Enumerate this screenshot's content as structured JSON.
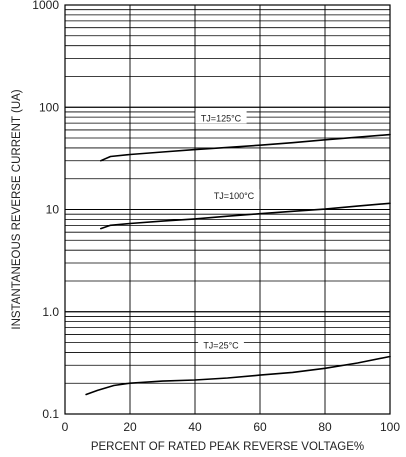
{
  "chart_data": {
    "type": "line",
    "title": "",
    "xlabel": "PERCENT OF RATED PEAK REVERSE VOLTAGE%",
    "ylabel": "INSTANTANEOUS REVERSE CURRENT (UA)",
    "xlim": [
      0,
      100
    ],
    "ylim": [
      0.1,
      1000
    ],
    "yscale": "log",
    "grid": true,
    "x_ticks": [
      0,
      20,
      40,
      60,
      80,
      100
    ],
    "x_tick_labels": [
      "0",
      "20",
      "40",
      "60",
      "80",
      "100"
    ],
    "y_ticks": [
      0.1,
      1,
      10,
      100,
      1000
    ],
    "y_tick_labels": [
      "0.1",
      "1.0",
      "10",
      "100",
      "1000"
    ],
    "series": [
      {
        "name": "TJ=125°C",
        "x": [
          11,
          14,
          20,
          30,
          40,
          50,
          60,
          70,
          80,
          90,
          100
        ],
        "y": [
          30,
          33,
          34.5,
          36.5,
          38.5,
          40.5,
          42.5,
          45,
          48,
          51,
          54
        ]
      },
      {
        "name": "TJ=100°C",
        "x": [
          11,
          14,
          20,
          30,
          40,
          50,
          60,
          70,
          80,
          90,
          100
        ],
        "y": [
          6.5,
          7,
          7.3,
          7.7,
          8.1,
          8.6,
          9.1,
          9.6,
          10.1,
          10.8,
          11.5
        ]
      },
      {
        "name": "TJ=25°C",
        "x": [
          6.5,
          10,
          15,
          20,
          30,
          40,
          50,
          60,
          70,
          80,
          90,
          100
        ],
        "y": [
          0.155,
          0.17,
          0.19,
          0.2,
          0.21,
          0.215,
          0.225,
          0.24,
          0.255,
          0.28,
          0.315,
          0.365
        ]
      }
    ],
    "annotations": [
      {
        "text": "TJ=125°C",
        "x": 48,
        "y": 78
      },
      {
        "text": "TJ=100°C",
        "x": 52,
        "y": 13.5
      },
      {
        "text": "TJ=25°C",
        "x": 48,
        "y": 0.47
      }
    ]
  }
}
